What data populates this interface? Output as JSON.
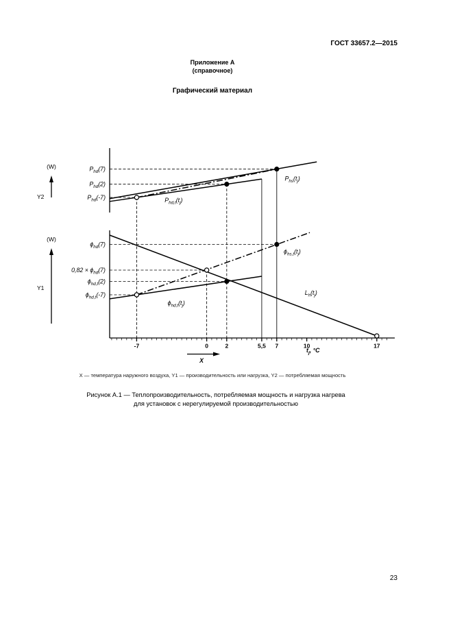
{
  "page": {
    "header": "ГОСТ 33657.2—2015",
    "appendix_title": "Приложение А",
    "appendix_note": "(справочное)",
    "section_title": "Графический материал",
    "legend": "X — температура наружного воздуха, Y1 — производительность или нагрузка, Y2 — потребляемая мощность",
    "caption_line1": "Рисунок А.1 — Теплопроизводительность, потребляемая мощность и нагрузка нагрева",
    "caption_line2": "для установок с нерегулируемой производительностью",
    "page_number": "23"
  },
  "chart_data": {
    "type": "line",
    "title": "Рисунок А.1",
    "grid": "off",
    "x_axis": {
      "range": [
        -9.7,
        18.6
      ],
      "major_ticks": [
        {
          "v": -7,
          "label": "-7"
        },
        {
          "v": 0,
          "label": "0"
        },
        {
          "v": 2,
          "label": "2"
        },
        {
          "v": 5.5,
          "label": "5,5"
        },
        {
          "v": 7,
          "label": "7"
        },
        {
          "v": 10,
          "label": "10"
        },
        {
          "v": 17,
          "label": "17"
        }
      ],
      "minor_tick_step": 0.5,
      "minor_tick_range": [
        -9.5,
        18
      ],
      "unit_label": [
        [
          "t",
          0
        ],
        [
          "j",
          1
        ],
        [
          ", °C",
          0
        ]
      ],
      "axis_arrow_label": "X"
    },
    "panels": [
      {
        "name": "Y2",
        "unit": "(W)",
        "y_range": [
          0,
          1.1
        ],
        "left_labels": [
          {
            "v": 0.72,
            "rich": [
              [
                "P",
                0
              ],
              [
                "hd",
                1
              ],
              [
                "(7)",
                0
              ]
            ]
          },
          {
            "v": 0.47,
            "rich": [
              [
                "P",
                0
              ],
              [
                "hd",
                1
              ],
              [
                "(2)",
                0
              ]
            ]
          },
          {
            "v": 0.25,
            "rich": [
              [
                "P",
                0
              ],
              [
                "hd",
                1
              ],
              [
                "(-7)",
                0
              ]
            ]
          }
        ],
        "h_guides": [
          {
            "v": 0.72,
            "to_x": 7
          },
          {
            "v": 0.47,
            "to_x": 2
          },
          {
            "v": 0.25,
            "to_x": -7
          }
        ],
        "series": [
          {
            "id": "P_hs",
            "style": "solid",
            "pts": [
              [
                -9.7,
                0.23
              ],
              [
                11.0,
                0.84
              ]
            ],
            "label": {
              "rich": [
                [
                  "P",
                  0
                ],
                [
                  "hs",
                  1
                ],
                [
                  "(t",
                  0
                ],
                [
                  "j",
                  1
                ],
                [
                  ")",
                  0
                ]
              ],
              "x": 7.8,
              "v": 0.53
            }
          },
          {
            "id": "P_hd_t",
            "style": "solid",
            "pts": [
              [
                -9.7,
                0.184
              ],
              [
                5.5,
                0.555
              ]
            ],
            "label": {
              "rich": [
                [
                  "P",
                  0
                ],
                [
                  "hd,t",
                  1
                ],
                [
                  "(t",
                  0
                ],
                [
                  "j",
                  1
                ],
                [
                  ")",
                  0
                ]
              ],
              "x": -4.2,
              "v": 0.17
            }
          },
          {
            "id": "P_interp",
            "style": "dashdot",
            "pts": [
              [
                -7,
                0.25
              ],
              [
                7,
                0.72
              ]
            ]
          }
        ],
        "points": [
          {
            "x": -7,
            "v": 0.25,
            "open": true
          },
          {
            "x": 2,
            "v": 0.47,
            "open": false
          },
          {
            "x": 7,
            "v": 0.72,
            "open": false
          }
        ]
      },
      {
        "name": "Y1",
        "unit": "(W)",
        "y_range": [
          0,
          1.05
        ],
        "left_labels": [
          {
            "v": 0.91,
            "rich": [
              [
                "ϕ",
                0
              ],
              [
                "hd",
                1
              ],
              [
                "(7)",
                0
              ]
            ]
          },
          {
            "v": 0.66,
            "rich": [
              [
                "0,82 × ϕ",
                0
              ],
              [
                "hd",
                1
              ],
              [
                "(7)",
                0
              ]
            ]
          },
          {
            "v": 0.55,
            "rich": [
              [
                "ϕ",
                0
              ],
              [
                "hd,t",
                1
              ],
              [
                "(2)",
                0
              ]
            ]
          },
          {
            "v": 0.42,
            "rich": [
              [
                "ϕ",
                0
              ],
              [
                "hd,t",
                1
              ],
              [
                "(-7)",
                0
              ]
            ]
          }
        ],
        "h_guides": [
          {
            "v": 0.91,
            "to_x": 7
          },
          {
            "v": 0.66,
            "to_x": 0
          },
          {
            "v": 0.55,
            "to_x": 2
          },
          {
            "v": 0.42,
            "to_x": -7
          }
        ],
        "series": [
          {
            "id": "L_h",
            "style": "solid",
            "pts": [
              [
                -9.7,
                1.0
              ],
              [
                17,
                0.02
              ]
            ],
            "label": {
              "rich": [
                [
                  "L",
                  0
                ],
                [
                  "h",
                  1
                ],
                [
                  "(t",
                  0
                ],
                [
                  "j",
                  1
                ],
                [
                  ")",
                  0
                ]
              ],
              "x": 9.8,
              "v": 0.42
            }
          },
          {
            "id": "phi_hs_t",
            "style": "dashdot",
            "pts": [
              [
                -7,
                0.42
              ],
              [
                10.3,
                1.025
              ]
            ],
            "label": {
              "rich": [
                [
                  "ϕ",
                  0
                ],
                [
                  "hs,t",
                  1
                ],
                [
                  "(t",
                  0
                ],
                [
                  "j",
                  1
                ],
                [
                  ")",
                  0
                ]
              ],
              "x": 7.7,
              "v": 0.82
            }
          },
          {
            "id": "phi_hd_t",
            "style": "solid",
            "pts": [
              [
                -9.7,
                0.381
              ],
              [
                5.5,
                0.6
              ]
            ],
            "label": {
              "rich": [
                [
                  "ϕ",
                  0
                ],
                [
                  "hd,t",
                  1
                ],
                [
                  "(t",
                  0
                ],
                [
                  "j",
                  1
                ],
                [
                  ")",
                  0
                ]
              ],
              "x": -3.9,
              "v": 0.32
            }
          }
        ],
        "points": [
          {
            "x": -7,
            "v": 0.42,
            "open": true
          },
          {
            "x": 0,
            "v": 0.66,
            "open": true
          },
          {
            "x": 2,
            "v": 0.55,
            "open": false
          },
          {
            "x": 7,
            "v": 0.91,
            "open": false
          },
          {
            "x": 17,
            "v": 0.02,
            "open": true
          }
        ]
      }
    ],
    "v_guides": [
      {
        "x": -7,
        "style": "dashed",
        "panel": 0,
        "top_v": 0.25
      },
      {
        "x": 0,
        "style": "dashed",
        "panel": 1,
        "top_v": 0.66
      },
      {
        "x": 2,
        "style": "dashed",
        "panel": 0,
        "top_v": 0.47
      },
      {
        "x": 5.5,
        "style": "solid",
        "panel": 0,
        "top_v": 0.555
      },
      {
        "x": 7,
        "style": "solid",
        "panel": 0,
        "top_v": 0.72
      }
    ],
    "colors": {
      "line": "#000000",
      "background": "#ffffff"
    }
  }
}
